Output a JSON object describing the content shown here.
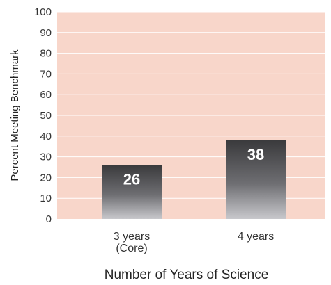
{
  "chart_data": {
    "type": "bar",
    "categories": [
      [
        "3 years",
        "(Core)"
      ],
      [
        "4 years"
      ]
    ],
    "values": [
      26,
      38
    ],
    "data_labels": [
      "26",
      "38"
    ],
    "xlabel": "Number of Years of Science",
    "ylabel": "Percent Meeting Benchmark",
    "ylim": [
      0,
      100
    ],
    "yticks": [
      0,
      10,
      20,
      30,
      40,
      50,
      60,
      70,
      80,
      90,
      100
    ],
    "grid": true,
    "colors": {
      "plot_background": "#f8d6ca",
      "gridline": "#ffffff",
      "bar_top": "#3a3a3c",
      "bar_bottom": "#c8c8cc",
      "data_label": "#ffffff"
    }
  }
}
